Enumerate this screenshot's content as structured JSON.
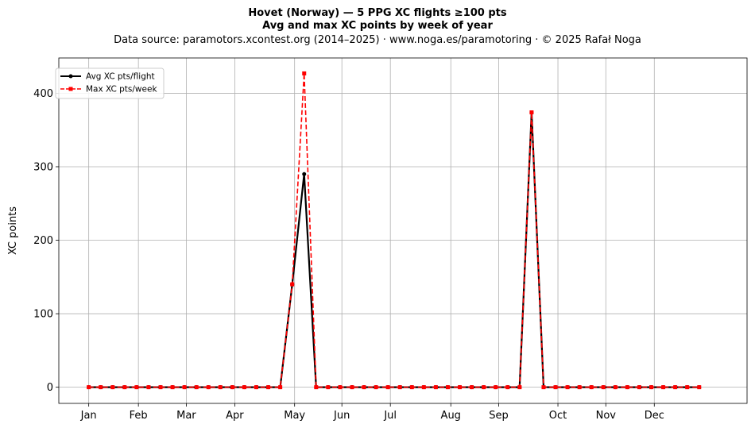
{
  "header": {
    "title_line1": "Hovet (Norway)  —  5 PPG XC flights ≥100 pts",
    "title_line2": "Avg and max XC points by week of year",
    "subtitle": "Data source: paramotors.xcontest.org (2014–2025)  ·  www.noga.es/paramotoring  ·  © 2025 Rafał Noga"
  },
  "chart_data": {
    "type": "line",
    "title": "Hovet (Norway)  —  5 PPG XC flights ≥100 pts",
    "subtitle": "Avg and max XC points by week of year",
    "xlabel": "",
    "ylabel": "XC points",
    "x": [
      1,
      2,
      3,
      4,
      5,
      6,
      7,
      8,
      9,
      10,
      11,
      12,
      13,
      14,
      15,
      16,
      17,
      18,
      19,
      20,
      21,
      22,
      23,
      24,
      25,
      26,
      27,
      28,
      29,
      30,
      31,
      32,
      33,
      34,
      35,
      36,
      37,
      38,
      39,
      40,
      41,
      42,
      43,
      44,
      45,
      46,
      47,
      48,
      49,
      50,
      51,
      52
    ],
    "xlim": [
      -1.5,
      56
    ],
    "ylim": [
      -22,
      448
    ],
    "yticks": [
      0,
      100,
      200,
      300,
      400
    ],
    "x_ticks": [
      {
        "label": "Jan",
        "x": 1
      },
      {
        "label": "Feb",
        "x": 5.15
      },
      {
        "label": "Mar",
        "x": 9.15
      },
      {
        "label": "Apr",
        "x": 13.2
      },
      {
        "label": "May",
        "x": 18.2
      },
      {
        "label": "Jun",
        "x": 22.15
      },
      {
        "label": "Jul",
        "x": 26.2
      },
      {
        "label": "Aug",
        "x": 31.25
      },
      {
        "label": "Sep",
        "x": 35.25
      },
      {
        "label": "Oct",
        "x": 40.2
      },
      {
        "label": "Nov",
        "x": 44.2
      },
      {
        "label": "Dec",
        "x": 48.25
      }
    ],
    "grid": true,
    "legend_position": "top-left",
    "series": [
      {
        "name": "Avg XC pts/flight",
        "color": "#000000",
        "style": "solid-circle",
        "values": [
          0,
          0,
          0,
          0,
          0,
          0,
          0,
          0,
          0,
          0,
          0,
          0,
          0,
          0,
          0,
          0,
          0,
          140,
          290,
          0,
          0,
          0,
          0,
          0,
          0,
          0,
          0,
          0,
          0,
          0,
          0,
          0,
          0,
          0,
          0,
          0,
          0,
          374,
          0,
          0,
          0,
          0,
          0,
          0,
          0,
          0,
          0,
          0,
          0,
          0,
          0,
          0
        ]
      },
      {
        "name": "Max XC pts/week",
        "color": "#ff0000",
        "style": "dashed-square",
        "values": [
          0,
          0,
          0,
          0,
          0,
          0,
          0,
          0,
          0,
          0,
          0,
          0,
          0,
          0,
          0,
          0,
          0,
          140,
          427,
          0,
          0,
          0,
          0,
          0,
          0,
          0,
          0,
          0,
          0,
          0,
          0,
          0,
          0,
          0,
          0,
          0,
          0,
          374,
          0,
          0,
          0,
          0,
          0,
          0,
          0,
          0,
          0,
          0,
          0,
          0,
          0,
          0
        ]
      }
    ]
  }
}
